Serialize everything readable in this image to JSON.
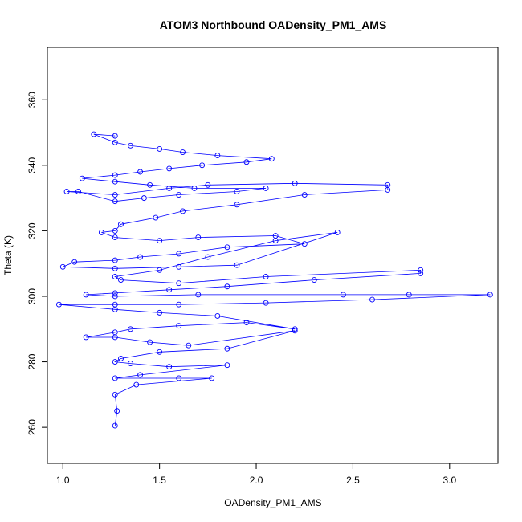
{
  "chart_data": {
    "type": "scatter",
    "title": "ATOM3 Northbound OADensity_PM1_AMS",
    "xlabel": "OADensity_PM1_AMS",
    "ylabel": "Theta (K)",
    "xlim": [
      0.92,
      3.25
    ],
    "ylim": [
      249,
      376
    ],
    "xticks": [
      1.0,
      1.5,
      2.0,
      2.5,
      3.0
    ],
    "xtick_labels": [
      "1.0",
      "1.5",
      "2.0",
      "2.5",
      "3.0"
    ],
    "yticks": [
      260,
      280,
      300,
      320,
      340,
      360
    ],
    "ytick_labels": [
      "260",
      "280",
      "300",
      "320",
      "340",
      "360"
    ],
    "grid": false,
    "color": "#0000ff",
    "marker": "open-circle",
    "connected": true,
    "series": [
      {
        "x": [
          1.27,
          1.16,
          1.27,
          1.35,
          1.5,
          1.62,
          1.8,
          2.08,
          1.95,
          1.72,
          1.55,
          1.4,
          1.27,
          1.1,
          1.27,
          1.45,
          1.68,
          2.05,
          1.9,
          1.6,
          1.42,
          1.27,
          1.08,
          1.02,
          1.27,
          1.55,
          1.75,
          2.2,
          2.68,
          2.68,
          2.25,
          1.9,
          1.62,
          1.48,
          1.3,
          1.27,
          1.2,
          1.27,
          1.5,
          1.7,
          2.1,
          2.25,
          1.85,
          1.6,
          1.4,
          1.27,
          1.06,
          1.0,
          1.27,
          1.6,
          1.9,
          2.42,
          2.1,
          1.75,
          1.5,
          1.27,
          1.3,
          1.6,
          2.05,
          2.85,
          2.85,
          2.3,
          1.85,
          1.55,
          1.27,
          1.12,
          1.27,
          1.7,
          2.45,
          2.79,
          3.21,
          2.6,
          2.05,
          1.6,
          1.27,
          0.98,
          1.27,
          1.5,
          1.8,
          2.2,
          1.95,
          1.6,
          1.35,
          1.27,
          1.12,
          1.27,
          1.45,
          1.65,
          2.2,
          1.85,
          1.5,
          1.3,
          1.27,
          1.35,
          1.55,
          1.85,
          1.4,
          1.27,
          1.6,
          1.77,
          1.38,
          1.27,
          1.28,
          1.27
        ],
        "y": [
          349,
          349.5,
          347,
          346,
          345,
          344,
          343,
          342,
          341,
          340,
          339,
          338,
          337,
          336,
          335,
          334,
          333,
          333,
          332,
          331,
          330,
          329,
          332,
          332,
          331,
          333,
          334,
          334.5,
          334,
          332.5,
          331,
          328,
          326,
          324,
          322,
          320,
          319.5,
          318,
          317,
          318,
          318.5,
          316,
          315,
          313,
          312,
          311,
          310.5,
          309,
          308.5,
          309,
          309.5,
          319.5,
          317,
          312,
          308,
          306,
          305,
          304,
          306,
          308,
          307,
          305,
          303,
          302,
          301,
          300.5,
          300,
          300.5,
          300.5,
          300.5,
          300.5,
          299,
          298,
          297.5,
          297.5,
          297.5,
          296,
          295,
          294,
          290,
          292,
          291,
          290,
          289,
          287.5,
          287.5,
          286,
          285,
          289.5,
          284,
          283,
          281,
          280,
          279.5,
          278.5,
          279,
          276,
          275,
          275,
          275,
          273,
          270,
          265,
          260.5
        ]
      }
    ]
  }
}
